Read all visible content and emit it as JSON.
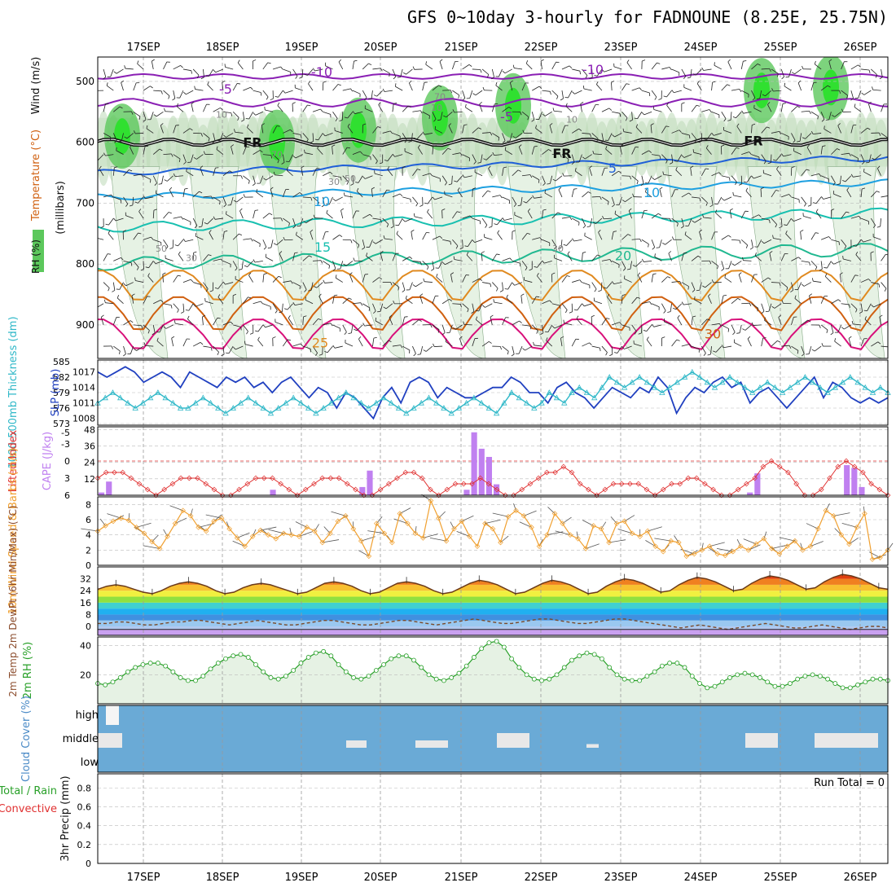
{
  "header": {
    "title": "GFS 0~10day 3-hourly for FADNOUNE (8.25E, 25.75N)"
  },
  "colors": {
    "rh_light": "#e6f2e4",
    "rh_mid": "#bcd9b6",
    "rh_gray": "#98ab98",
    "rh_green": "#5cc85c",
    "rh_bright": "#30e030",
    "temp_purple": "#8a1fb4",
    "temp_blue": "#1f5fd8",
    "temp_lblue": "#1ea0e0",
    "temp_teal": "#18c0b0",
    "temp_green": "#20b890",
    "temp_orange": "#e08a20",
    "temp_dorange": "#d06010",
    "temp_magenta": "#d8107a",
    "thickness": "#2040c0",
    "slp": "#30b8c8",
    "lifted": "#e03030",
    "cape": "#c080f0",
    "wind": "#f0a030",
    "rh2m": "#28a028",
    "cloud": "#6aaad6"
  },
  "chart_data": {
    "type": "meteogram",
    "title": "GFS 0~10day 3-hourly for FADNOUNE (8.25E, 25.75N)",
    "x_ticks": [
      "17SEP",
      "18SEP",
      "19SEP",
      "20SEP",
      "21SEP",
      "22SEP",
      "23SEP",
      "24SEP",
      "25SEP",
      "26SEP"
    ],
    "panels": {
      "upper_air": {
        "ylabel_parts": [
          "RH (%)",
          "Temperature (°C)",
          "Wind (m/s)"
        ],
        "ylabel_axis": "(millibars)",
        "yticks": [
          500,
          600,
          700,
          800,
          900
        ],
        "isotherm_labels": [
          "-10",
          "-10",
          "-5",
          "-5",
          "FR",
          "FR",
          "FR",
          "5",
          "10",
          "10",
          "15",
          "20",
          "25",
          "30"
        ],
        "rh_labels": [
          "10",
          "10",
          "10",
          "30",
          "30",
          "30",
          "50",
          "50",
          "70",
          "70"
        ]
      },
      "thickness_slp": {
        "ylabel_left": "1000-500mb Thickness (dm)",
        "ylabel_right": "SLP (mb)",
        "yticks_left": [
          573,
          576,
          579,
          582,
          585
        ],
        "yticks_right": [
          1008,
          1011,
          1014,
          1017
        ],
        "thickness": [
          583,
          582,
          583,
          584,
          583,
          581,
          582,
          583,
          582,
          580,
          583,
          582,
          581,
          580,
          582,
          581,
          582,
          580,
          581,
          579,
          581,
          582,
          580,
          578,
          580,
          579,
          576,
          579,
          578,
          576,
          574,
          578,
          580,
          577,
          581,
          582,
          581,
          578,
          580,
          579,
          578,
          578,
          579,
          580,
          580,
          582,
          581,
          579,
          579,
          577,
          580,
          581,
          579,
          578,
          576,
          578,
          580,
          579,
          578,
          580,
          579,
          582,
          580,
          575,
          578,
          580,
          579,
          581,
          582,
          580,
          581,
          577,
          579,
          580,
          578,
          576,
          578,
          580,
          582,
          578,
          581,
          580,
          578,
          577,
          578,
          577,
          578
        ],
        "slp": [
          1011,
          1012,
          1013,
          1012,
          1011,
          1010,
          1011,
          1012,
          1013,
          1012,
          1011,
          1010,
          1010,
          1011,
          1012,
          1011,
          1010,
          1009,
          1010,
          1011,
          1012,
          1011,
          1010,
          1009,
          1010,
          1011,
          1012,
          1011,
          1010,
          1009,
          1010,
          1011,
          1012,
          1013,
          1012,
          1011,
          1010,
          1011,
          1012,
          1011,
          1010,
          1009,
          1010,
          1011,
          1012,
          1011,
          1010,
          1009,
          1010,
          1011,
          1012,
          1011,
          1010,
          1009,
          1011,
          1013,
          1012,
          1011,
          1010,
          1011,
          1013,
          1012,
          1011,
          1013,
          1014,
          1013,
          1012,
          1014,
          1016,
          1015,
          1014,
          1015,
          1016,
          1015,
          1014,
          1013,
          1014,
          1015,
          1016,
          1017,
          1016,
          1015,
          1014,
          1015,
          1016,
          1015,
          1014,
          1013,
          1014,
          1015,
          1014,
          1013,
          1014,
          1015,
          1016,
          1015,
          1014,
          1013,
          1014,
          1015,
          1016,
          1015,
          1014,
          1013,
          1014,
          1013
        ]
      },
      "lifted_cape": {
        "ylabel_left": "Lifted Index",
        "ylabel_right": "CAPE (J/kg)",
        "yticks_left": [
          -5,
          -3,
          0,
          3,
          6
        ],
        "yticks_right": [
          12,
          24,
          36,
          48
        ],
        "lifted_index": [
          3,
          2,
          2,
          2,
          3,
          4,
          5,
          6,
          5,
          4,
          3,
          3,
          3,
          4,
          5,
          6,
          6,
          5,
          4,
          3,
          3,
          3,
          4,
          5,
          6,
          5,
          4,
          3,
          3,
          3,
          4,
          5,
          6,
          6,
          5,
          4,
          3,
          2,
          2,
          3,
          5,
          6,
          5,
          4,
          4,
          4,
          3,
          4,
          5,
          6,
          6,
          5,
          4,
          3,
          2,
          2,
          1,
          2,
          4,
          5,
          6,
          5,
          4,
          4,
          4,
          4,
          5,
          6,
          5,
          4,
          4,
          3,
          3,
          4,
          5,
          6,
          6,
          5,
          4,
          3,
          1,
          0,
          1,
          2,
          4,
          6,
          6,
          5,
          3,
          1,
          0,
          1,
          2,
          4,
          5,
          6
        ],
        "cape": [
          2,
          10,
          0,
          0,
          0,
          0,
          0,
          0,
          0,
          0,
          0,
          0,
          0,
          0,
          0,
          0,
          0,
          0,
          0,
          0,
          0,
          0,
          0,
          4,
          0,
          0,
          0,
          0,
          0,
          0,
          0,
          0,
          0,
          0,
          0,
          6,
          18,
          0,
          0,
          0,
          0,
          0,
          0,
          0,
          0,
          0,
          0,
          0,
          0,
          4,
          46,
          34,
          28,
          8,
          0,
          0,
          0,
          0,
          0,
          0,
          0,
          0,
          0,
          0,
          0,
          0,
          0,
          0,
          0,
          0,
          0,
          0,
          0,
          0,
          0,
          0,
          0,
          0,
          0,
          0,
          0,
          0,
          0,
          0,
          0,
          0,
          0,
          2,
          16,
          0,
          0,
          0,
          0,
          0,
          0,
          0,
          0,
          0,
          0,
          0,
          22,
          20,
          6,
          0,
          0,
          0
        ]
      },
      "wind10m": {
        "ylabel": "10m Wind Speed & Barbs (m/s)",
        "yticks": [
          0,
          2,
          4,
          6,
          8
        ],
        "speed": [
          4.5,
          5.2,
          5.8,
          6.2,
          5.9,
          5.0,
          4.2,
          3.1,
          2.2,
          3.8,
          5.5,
          7.2,
          6.5,
          5.0,
          4.5,
          5.8,
          6.2,
          4.8,
          3.6,
          2.5,
          3.8,
          4.6,
          4.0,
          3.5,
          4.2,
          4.0,
          3.8,
          5.0,
          4.5,
          3.0,
          4.2,
          5.8,
          6.5,
          4.8,
          3.2,
          1.2,
          5.5,
          4.2,
          3.0,
          6.8,
          5.5,
          4.2,
          3.6,
          8.5,
          6.2,
          3.2,
          4.8,
          5.8,
          3.8,
          2.5,
          5.5,
          4.8,
          3.0,
          6.4,
          7.2,
          6.5,
          5.0,
          2.5,
          4.0,
          6.8,
          5.5,
          4.0,
          3.5,
          2.2,
          5.2,
          4.8,
          3.0,
          5.5,
          5.8,
          4.2,
          3.8,
          4.5,
          2.5,
          1.8,
          3.2,
          3.0,
          1.2,
          1.5,
          2.0,
          2.5,
          1.5,
          1.3,
          1.8,
          2.5,
          2.0,
          2.8,
          3.5,
          2.2,
          1.5,
          2.5,
          3.2,
          2.0,
          2.5,
          4.8,
          7.2,
          6.5,
          4.0,
          2.8,
          5.0,
          6.8,
          0.8,
          1.0,
          2.0
        ]
      },
      "temp2m": {
        "ylabel": "2m Temp 2m DewPt (6hr Min/Max) (°C)",
        "yticks": [
          0,
          8,
          16,
          24,
          32
        ],
        "temperature": [
          25,
          27,
          28,
          27,
          25,
          23,
          22,
          24,
          27,
          29,
          30,
          29,
          27,
          24,
          22,
          23,
          26,
          28,
          29,
          28,
          26,
          24,
          22,
          23,
          26,
          29,
          30,
          29,
          27,
          24,
          22,
          23,
          26,
          29,
          30,
          29,
          27,
          24,
          22,
          23,
          26,
          29,
          31,
          30,
          28,
          25,
          22,
          23,
          26,
          29,
          31,
          30,
          28,
          25,
          22,
          23,
          27,
          30,
          32,
          31,
          29,
          26,
          23,
          24,
          28,
          31,
          33,
          32,
          30,
          27,
          24,
          25,
          29,
          32,
          34,
          33,
          31,
          28,
          25,
          26,
          30,
          33,
          35,
          34,
          32,
          29,
          26,
          25
        ],
        "dewpoint": [
          2,
          2,
          3,
          3,
          2,
          1,
          1,
          2,
          3,
          3,
          4,
          4,
          3,
          2,
          1,
          2,
          3,
          4,
          3,
          2,
          1,
          1,
          2,
          3,
          4,
          4,
          3,
          2,
          1,
          1,
          2,
          3,
          4,
          4,
          3,
          2,
          1,
          2,
          3,
          4,
          5,
          4,
          3,
          2,
          2,
          3,
          4,
          5,
          5,
          4,
          3,
          2,
          2,
          3,
          4,
          5,
          5,
          4,
          3,
          2,
          1,
          0,
          -1,
          0,
          1,
          0,
          -1,
          -2,
          -1,
          0,
          1,
          2,
          1,
          0,
          -1,
          -1,
          0,
          1,
          0,
          -1,
          -2,
          -1,
          0,
          0,
          -1
        ]
      },
      "rh2m": {
        "ylabel": "2m RH (%)",
        "yticks": [
          20,
          40
        ],
        "values": [
          14,
          13,
          15,
          18,
          22,
          25,
          27,
          28,
          28,
          26,
          22,
          18,
          16,
          16,
          19,
          24,
          28,
          31,
          33,
          34,
          32,
          27,
          22,
          18,
          17,
          19,
          23,
          28,
          32,
          35,
          36,
          33,
          27,
          22,
          18,
          17,
          19,
          23,
          27,
          31,
          33,
          33,
          30,
          25,
          20,
          17,
          16,
          18,
          21,
          26,
          32,
          38,
          42,
          43,
          39,
          31,
          25,
          20,
          17,
          16,
          17,
          20,
          25,
          30,
          33,
          35,
          34,
          31,
          25,
          20,
          17,
          16,
          16,
          19,
          22,
          26,
          28,
          28,
          25,
          19,
          14,
          11,
          12,
          15,
          18,
          20,
          21,
          20,
          18,
          15,
          12,
          12,
          14,
          17,
          19,
          20,
          19,
          17,
          14,
          11,
          11,
          13,
          15,
          17,
          17,
          16
        ]
      },
      "cloud_cover": {
        "ylabel": "Cloud Cover (%)",
        "levels": [
          "high",
          "middle",
          "low"
        ]
      },
      "precip": {
        "ylabel_parts": [
          "Total / Rain",
          "Convective"
        ],
        "ylabel_axis": "3hr Precip (mm)",
        "yticks": [
          0,
          0.2,
          0.4,
          0.6,
          0.8
        ],
        "run_total_label": "Run Total = 0"
      }
    }
  }
}
